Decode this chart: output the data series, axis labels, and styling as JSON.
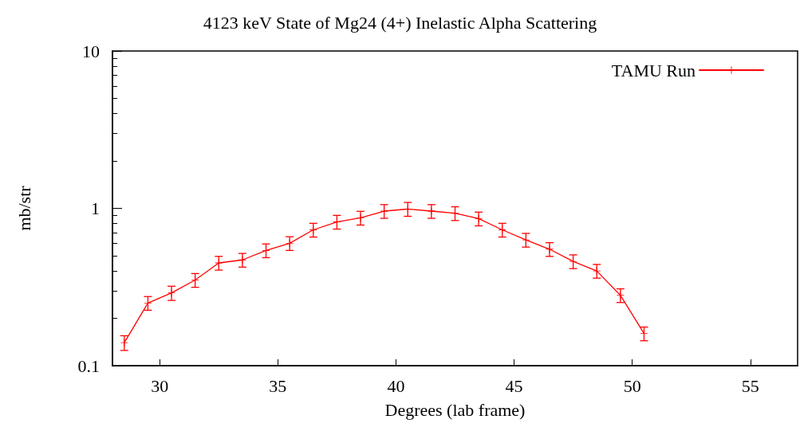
{
  "chart_data": {
    "type": "line",
    "title": "4123 keV State of Mg24 (4+) Inelastic Alpha Scattering",
    "xlabel": "Degrees (lab frame)",
    "ylabel": "mb/str",
    "x": [
      28.5,
      29.5,
      30.5,
      31.5,
      32.5,
      33.5,
      34.5,
      35.5,
      36.5,
      37.5,
      38.5,
      39.5,
      40.5,
      41.5,
      42.5,
      43.5,
      44.5,
      45.5,
      46.5,
      47.5,
      48.5,
      49.5,
      50.5
    ],
    "series": [
      {
        "name": "TAMU Run",
        "color": "#ff0000",
        "values": [
          0.14,
          0.25,
          0.29,
          0.35,
          0.45,
          0.47,
          0.54,
          0.6,
          0.73,
          0.82,
          0.87,
          0.96,
          0.99,
          0.96,
          0.93,
          0.86,
          0.73,
          0.63,
          0.55,
          0.46,
          0.4,
          0.28,
          0.16
        ],
        "errors": [
          0.015,
          0.025,
          0.03,
          0.035,
          0.045,
          0.047,
          0.054,
          0.06,
          0.073,
          0.082,
          0.087,
          0.096,
          0.1,
          0.096,
          0.093,
          0.086,
          0.073,
          0.063,
          0.055,
          0.046,
          0.04,
          0.028,
          0.016
        ]
      }
    ],
    "xlim": [
      28,
      57
    ],
    "xticks": [
      30,
      35,
      40,
      45,
      50,
      55
    ],
    "ylim": [
      0.1,
      10
    ],
    "yticks": [
      0.1,
      1,
      10
    ],
    "log": true,
    "grid": false,
    "legend": "top right",
    "marker": "cross",
    "line_style": "solid"
  }
}
